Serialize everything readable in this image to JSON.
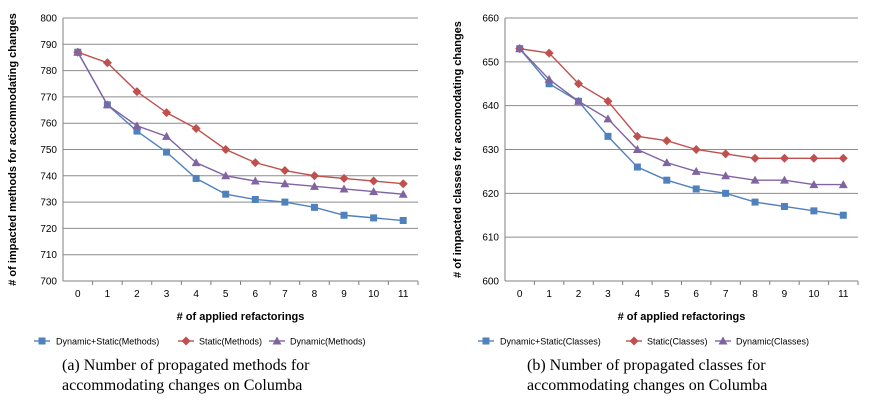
{
  "chart_data": [
    {
      "type": "line",
      "caption_line1": "(a)  Number of propagated methods for",
      "caption_line2": "accommodating changes on Columba",
      "xlabel": "# of applied refactorings",
      "ylabel": "# of impacted methods for accommodating changes",
      "x": [
        0,
        1,
        2,
        3,
        4,
        5,
        6,
        7,
        8,
        9,
        10,
        11
      ],
      "ylim": [
        700,
        800
      ],
      "yticks": [
        700,
        710,
        720,
        730,
        740,
        750,
        760,
        770,
        780,
        790,
        800
      ],
      "grid": true,
      "legend_position": "bottom",
      "series": [
        {
          "name": "Dynamic+Static(Methods)",
          "color": "#4f81bd",
          "marker": "square",
          "values": [
            787,
            767,
            757,
            749,
            739,
            733,
            731,
            730,
            728,
            725,
            724,
            723
          ]
        },
        {
          "name": "Static(Methods)",
          "color": "#c0504d",
          "marker": "diamond",
          "values": [
            787,
            783,
            772,
            764,
            758,
            750,
            745,
            742,
            740,
            739,
            738,
            737
          ]
        },
        {
          "name": "Dynamic(Methods)",
          "color": "#8064a2",
          "marker": "triangle",
          "values": [
            787,
            767,
            759,
            755,
            745,
            740,
            738,
            737,
            736,
            735,
            734,
            733
          ]
        }
      ]
    },
    {
      "type": "line",
      "caption_line1": "(b)  Number of propagated classes for",
      "caption_line2": "accommodating changes on Columba",
      "xlabel": "# of applied refactorings",
      "ylabel": "# of impacted classes for accomodating changes",
      "x": [
        0,
        1,
        2,
        3,
        4,
        5,
        6,
        7,
        8,
        9,
        10,
        11
      ],
      "ylim": [
        600,
        660
      ],
      "yticks": [
        600,
        610,
        620,
        630,
        640,
        650,
        660
      ],
      "grid": true,
      "legend_position": "bottom",
      "series": [
        {
          "name": "Dynamic+Static(Classes)",
          "color": "#4f81bd",
          "marker": "square",
          "values": [
            653,
            645,
            641,
            633,
            626,
            623,
            621,
            620,
            618,
            617,
            616,
            615
          ]
        },
        {
          "name": "Static(Classes)",
          "color": "#c0504d",
          "marker": "diamond",
          "values": [
            653,
            652,
            645,
            641,
            633,
            632,
            630,
            629,
            628,
            628,
            628,
            628
          ]
        },
        {
          "name": "Dynamic(Classes)",
          "color": "#8064a2",
          "marker": "triangle",
          "values": [
            653,
            646,
            641,
            637,
            630,
            627,
            625,
            624,
            623,
            623,
            622,
            622
          ]
        }
      ]
    }
  ]
}
